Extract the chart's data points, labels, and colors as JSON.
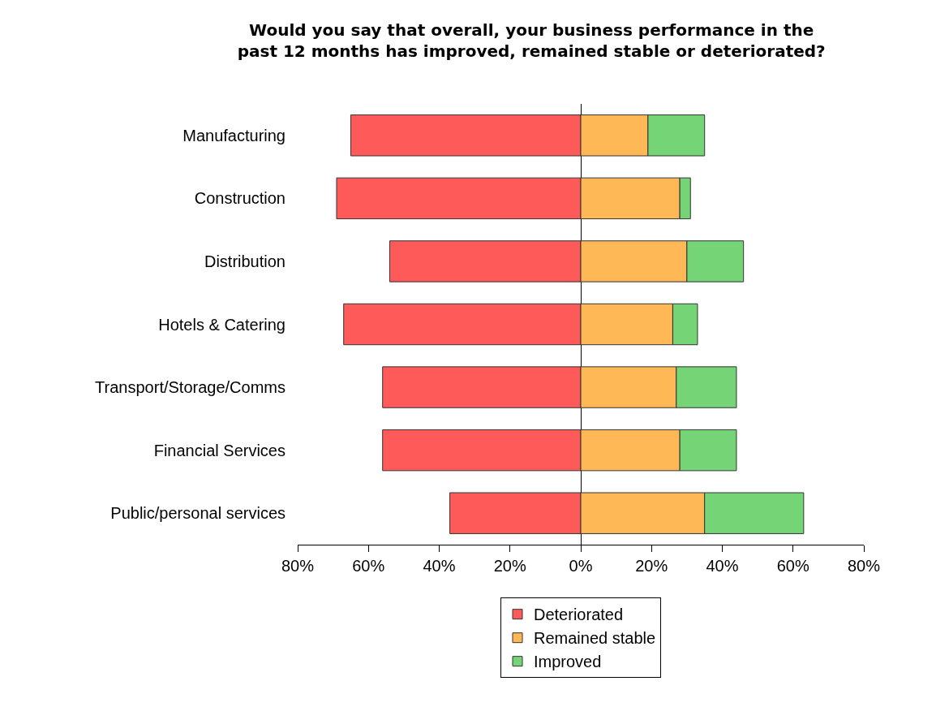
{
  "chart_data": {
    "type": "bar",
    "orientation": "horizontal",
    "stacked": true,
    "title": "Would you say that overall, your business performance in the\npast 12 months has improved, remained stable or deteriorated?",
    "categories": [
      "Manufacturing",
      "Construction",
      "Distribution",
      "Hotels & Catering",
      "Transport/Storage/Comms",
      "Financial Services",
      "Public/personal services"
    ],
    "series": [
      {
        "name": "Deteriorated",
        "color": "#ff5a5a",
        "values": [
          -65,
          -69,
          -54,
          -67,
          -56,
          -56,
          -37
        ]
      },
      {
        "name": "Remained stable",
        "color": "#ffb855",
        "values": [
          19,
          28,
          30,
          26,
          27,
          28,
          35
        ]
      },
      {
        "name": "Improved",
        "color": "#75d475",
        "values": [
          16,
          3,
          16,
          7,
          17,
          16,
          28
        ]
      }
    ],
    "xlim": [
      -80,
      80
    ],
    "xticks": [
      {
        "value": -80,
        "label": "80%"
      },
      {
        "value": -60,
        "label": "60%"
      },
      {
        "value": -40,
        "label": "40%"
      },
      {
        "value": -20,
        "label": "20%"
      },
      {
        "value": 0,
        "label": "0%"
      },
      {
        "value": 20,
        "label": "20%"
      },
      {
        "value": 40,
        "label": "40%"
      },
      {
        "value": 60,
        "label": "60%"
      },
      {
        "value": 80,
        "label": "80%"
      }
    ],
    "legend": "bottom"
  }
}
